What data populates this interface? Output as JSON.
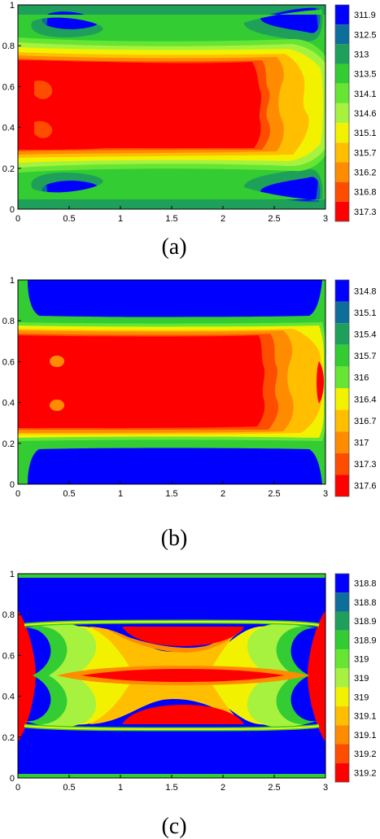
{
  "chart_data": [
    {
      "type": "heatmap",
      "caption": "(a)",
      "xlim": [
        0,
        3
      ],
      "ylim": [
        0,
        1
      ],
      "x_ticks": [
        "0",
        "0.5",
        "1",
        "1.5",
        "2",
        "2.5",
        "3"
      ],
      "y_ticks": [
        "0",
        "0.2",
        "0.4",
        "0.6",
        "0.8",
        "1"
      ],
      "legend_levels": [
        "311.9",
        "312.5",
        "313",
        "313.5",
        "314.1",
        "314.6",
        "315.1",
        "315.7",
        "316.2",
        "316.8",
        "317.3"
      ],
      "legend_colors": [
        "#0000ff",
        "#0d6e9b",
        "#1fa05a",
        "#33cc33",
        "#66e633",
        "#a6f23f",
        "#f2f200",
        "#ffbf00",
        "#ff8c00",
        "#ff4d00",
        "#ff0000"
      ],
      "legend_placement": "right"
    },
    {
      "type": "heatmap",
      "caption": "(b)",
      "xlim": [
        0,
        3
      ],
      "ylim": [
        0,
        1
      ],
      "x_ticks": [
        "0",
        "0.5",
        "1",
        "1.5",
        "2",
        "2.5",
        "3"
      ],
      "y_ticks": [
        "0",
        "0.2",
        "0.4",
        "0.6",
        "0.8",
        "1"
      ],
      "legend_levels": [
        "314.8",
        "315.1",
        "315.4",
        "315.7",
        "316",
        "316.4",
        "316.7",
        "317",
        "317.3",
        "317.6"
      ],
      "legend_colors": [
        "#0000ff",
        "#0d6e9b",
        "#1fa05a",
        "#33cc33",
        "#66e633",
        "#f2f200",
        "#ffbf00",
        "#ff8c00",
        "#ff4d00",
        "#ff0000"
      ],
      "legend_placement": "right"
    },
    {
      "type": "heatmap",
      "caption": "(c)",
      "xlim": [
        0,
        3
      ],
      "ylim": [
        0,
        1
      ],
      "x_ticks": [
        "0",
        "0.5",
        "1",
        "1.5",
        "2",
        "2.5",
        "3"
      ],
      "y_ticks": [
        "0",
        "0.2",
        "0.4",
        "0.6",
        "0.8",
        "1"
      ],
      "legend_levels": [
        "318.8",
        "318.8",
        "318.9",
        "318.9",
        "319",
        "319",
        "319",
        "319.1",
        "319.1",
        "319.2",
        "319.2"
      ],
      "legend_colors": [
        "#0000ff",
        "#0d6e9b",
        "#1fa05a",
        "#33cc33",
        "#66e633",
        "#a6f23f",
        "#f2f200",
        "#ffbf00",
        "#ff8c00",
        "#ff4d00",
        "#ff0000"
      ],
      "legend_placement": "right"
    }
  ]
}
